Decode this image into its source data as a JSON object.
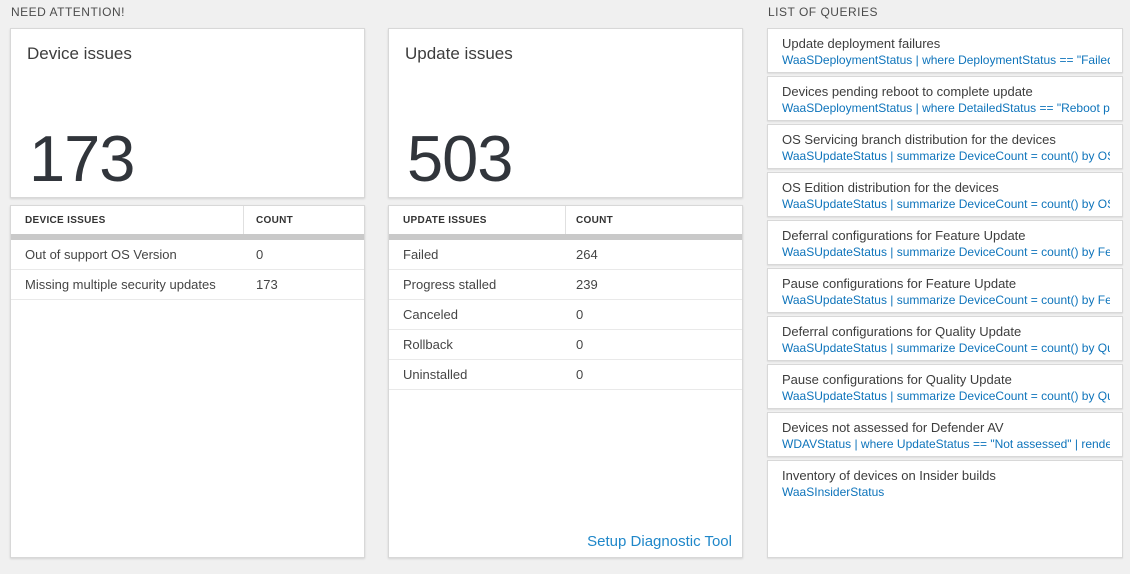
{
  "colors": {
    "page_background": "#f0f0f0",
    "query_link_blue": "#0e74bb",
    "diagnostic_link_blue": "#1f87c9",
    "big_number_dark": "#31353b",
    "thick_bar_gray": "#c9c9c9"
  },
  "need_attention": {
    "label": "NEED ATTENTION!",
    "device_card": {
      "title": "Device issues",
      "count": "173",
      "table": {
        "headers": {
          "issue": "DEVICE ISSUES",
          "count": "COUNT"
        },
        "rows": [
          {
            "label": "Out of support OS Version",
            "count": "0"
          },
          {
            "label": "Missing multiple security updates",
            "count": "173"
          }
        ]
      }
    },
    "update_card": {
      "title": "Update issues",
      "count": "503",
      "table": {
        "headers": {
          "issue": "UPDATE ISSUES",
          "count": "COUNT"
        },
        "rows": [
          {
            "label": "Failed",
            "count": "264"
          },
          {
            "label": "Progress stalled",
            "count": "239"
          },
          {
            "label": "Canceled",
            "count": "0"
          },
          {
            "label": "Rollback",
            "count": "0"
          },
          {
            "label": "Uninstalled",
            "count": "0"
          }
        ]
      },
      "footer_link": "Setup Diagnostic Tool"
    }
  },
  "queries": {
    "label": "LIST OF QUERIES",
    "items": [
      {
        "title": "Update deployment failures",
        "query": "WaaSDeploymentStatus | where DeploymentStatus == \"Failed\" |..."
      },
      {
        "title": "Devices pending reboot to complete update",
        "query": "WaaSDeploymentStatus | where DetailedStatus == \"Reboot pend..."
      },
      {
        "title": "OS Servicing branch distribution for the devices",
        "query": "WaaSUpdateStatus | summarize DeviceCount = count() by OSSer..."
      },
      {
        "title": "OS Edition distribution for the devices",
        "query": "WaaSUpdateStatus | summarize DeviceCount = count() by OSEdit..."
      },
      {
        "title": "Deferral configurations for Feature Update",
        "query": "WaaSUpdateStatus | summarize DeviceCount = count() by Featur..."
      },
      {
        "title": "Pause configurations for Feature Update",
        "query": "WaaSUpdateStatus | summarize DeviceCount = count() by Featur..."
      },
      {
        "title": "Deferral configurations for Quality Update",
        "query": "WaaSUpdateStatus | summarize DeviceCount = count() by Qualit..."
      },
      {
        "title": "Pause configurations for Quality Update",
        "query": "WaaSUpdateStatus | summarize DeviceCount = count() by Qualit..."
      },
      {
        "title": "Devices not assessed for Defender AV",
        "query": "WDAVStatus | where UpdateStatus == \"Not assessed\" | render ta..."
      },
      {
        "title": "Inventory of devices on Insider builds",
        "query": "WaaSInsiderStatus"
      }
    ]
  }
}
